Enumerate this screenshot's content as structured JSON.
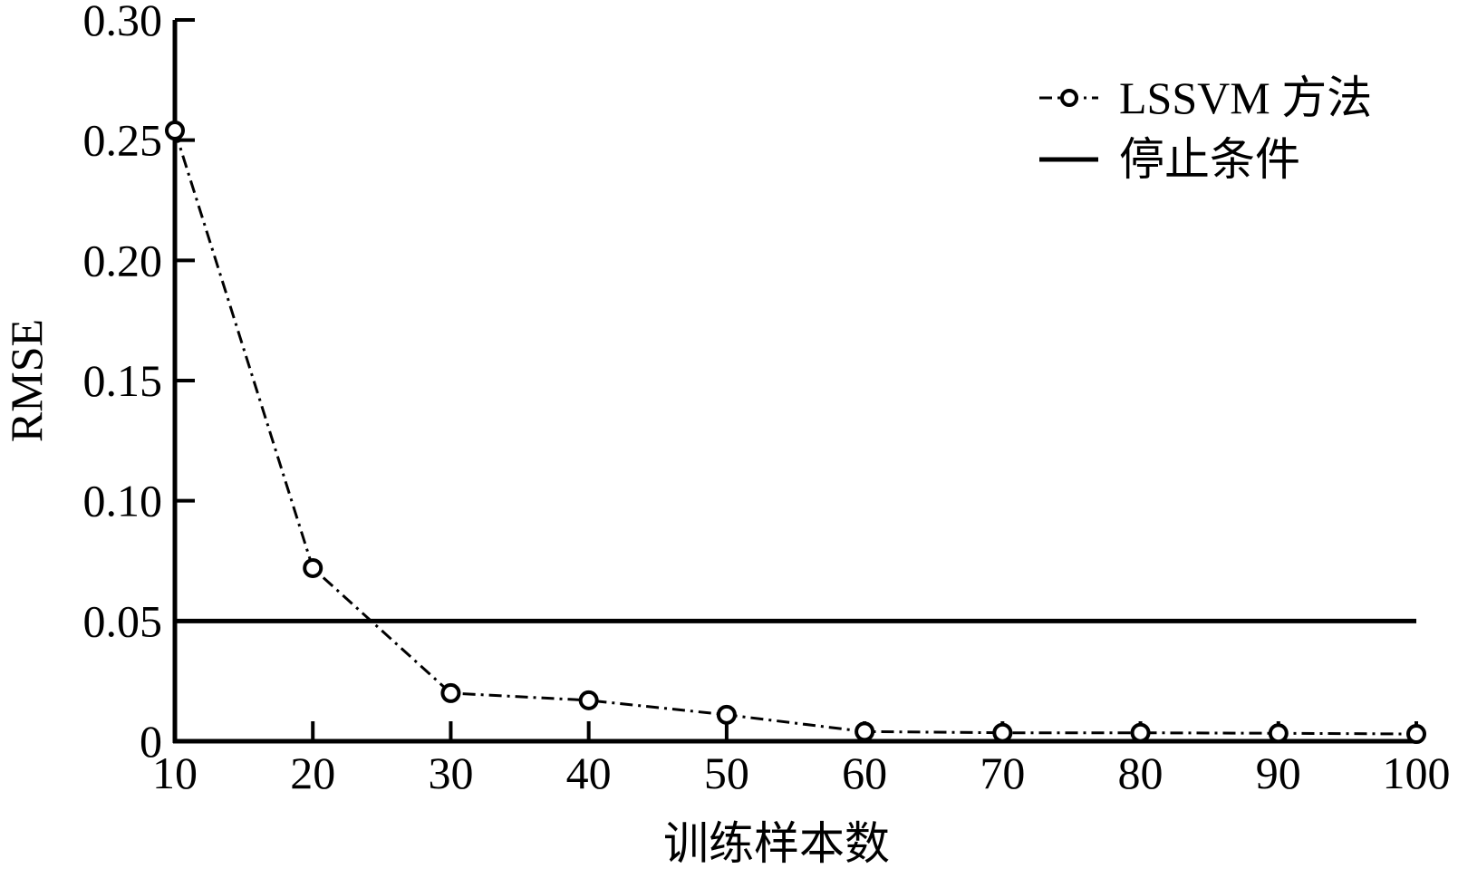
{
  "chart_data": {
    "type": "line",
    "xlabel": "训练样本数",
    "ylabel": "RMSE",
    "x": [
      10,
      20,
      30,
      40,
      50,
      60,
      70,
      80,
      90,
      100
    ],
    "xlim": [
      10,
      100
    ],
    "ylim": [
      0,
      0.3
    ],
    "x_ticks": [
      "10",
      "20",
      "30",
      "40",
      "50",
      "60",
      "70",
      "80",
      "90",
      "100"
    ],
    "y_ticks": [
      "0",
      "0.05",
      "0.10",
      "0.15",
      "0.20",
      "0.25",
      "0.30"
    ],
    "series": [
      {
        "name": "LSSVM 方法",
        "style": "dash-dot with circle markers",
        "color": "#000000",
        "values": [
          0.254,
          0.072,
          0.02,
          0.017,
          0.011,
          0.004,
          0.0035,
          0.0035,
          0.0033,
          0.003
        ]
      },
      {
        "name": "停止条件",
        "style": "solid",
        "color": "#000000",
        "values": [
          0.05,
          0.05,
          0.05,
          0.05,
          0.05,
          0.05,
          0.05,
          0.05,
          0.05,
          0.05
        ]
      }
    ],
    "grid": false,
    "legend_position": "top-right"
  }
}
